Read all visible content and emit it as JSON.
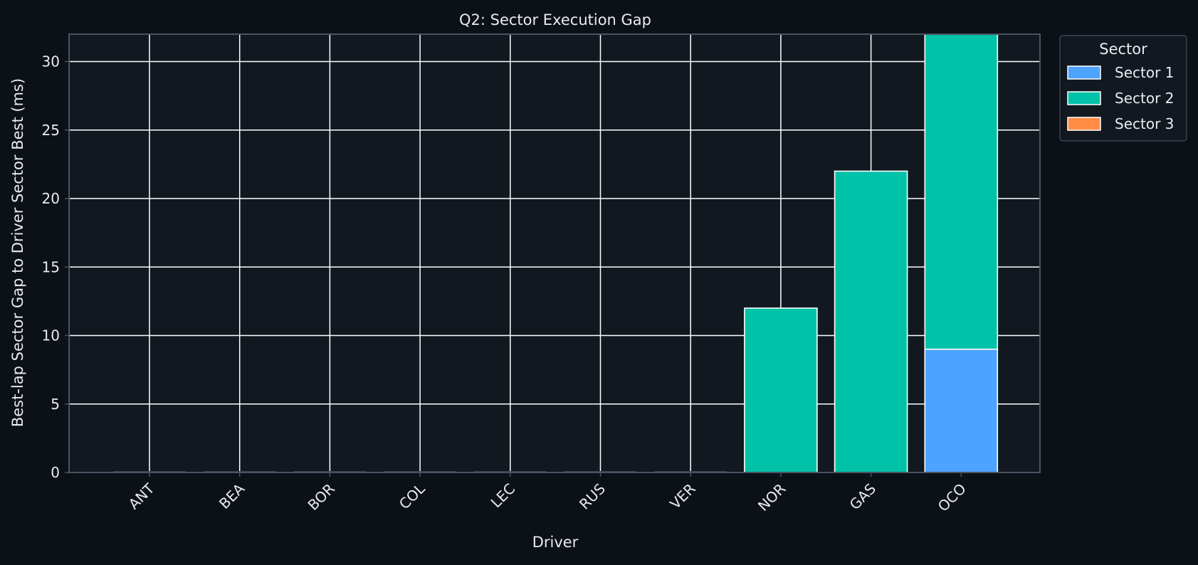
{
  "chart_data": {
    "type": "bar",
    "stacked": true,
    "title": "Q2: Sector Execution Gap",
    "xlabel": "Driver",
    "ylabel": "Best-lap Sector Gap to Driver Sector Best (ms)",
    "categories": [
      "ANT",
      "BEA",
      "BOR",
      "COL",
      "LEC",
      "RUS",
      "VER",
      "NOR",
      "GAS",
      "OCO"
    ],
    "series": [
      {
        "name": "Sector 1",
        "color": "#4da3ff",
        "values": [
          0,
          0,
          0,
          0,
          0,
          0,
          0,
          0,
          0,
          9
        ]
      },
      {
        "name": "Sector 2",
        "color": "#00c2a8",
        "values": [
          0,
          0,
          0,
          0,
          0,
          0,
          0,
          12,
          22,
          23
        ]
      },
      {
        "name": "Sector 3",
        "color": "#ff8c42",
        "values": [
          0,
          0,
          0,
          0,
          0,
          0,
          0,
          0,
          0,
          0
        ]
      }
    ],
    "ylim": [
      0,
      32
    ],
    "yticks": [
      0,
      5,
      10,
      15,
      20,
      25,
      30
    ],
    "grid": true,
    "legend": {
      "title": "Sector",
      "placement": "outside-top-right"
    },
    "colors": {
      "figure_background": "#0c1017",
      "plot_background": "#121820",
      "grid": "#ffffff",
      "text": "#e8ecf1",
      "axis_spine": "#4a5361"
    }
  }
}
